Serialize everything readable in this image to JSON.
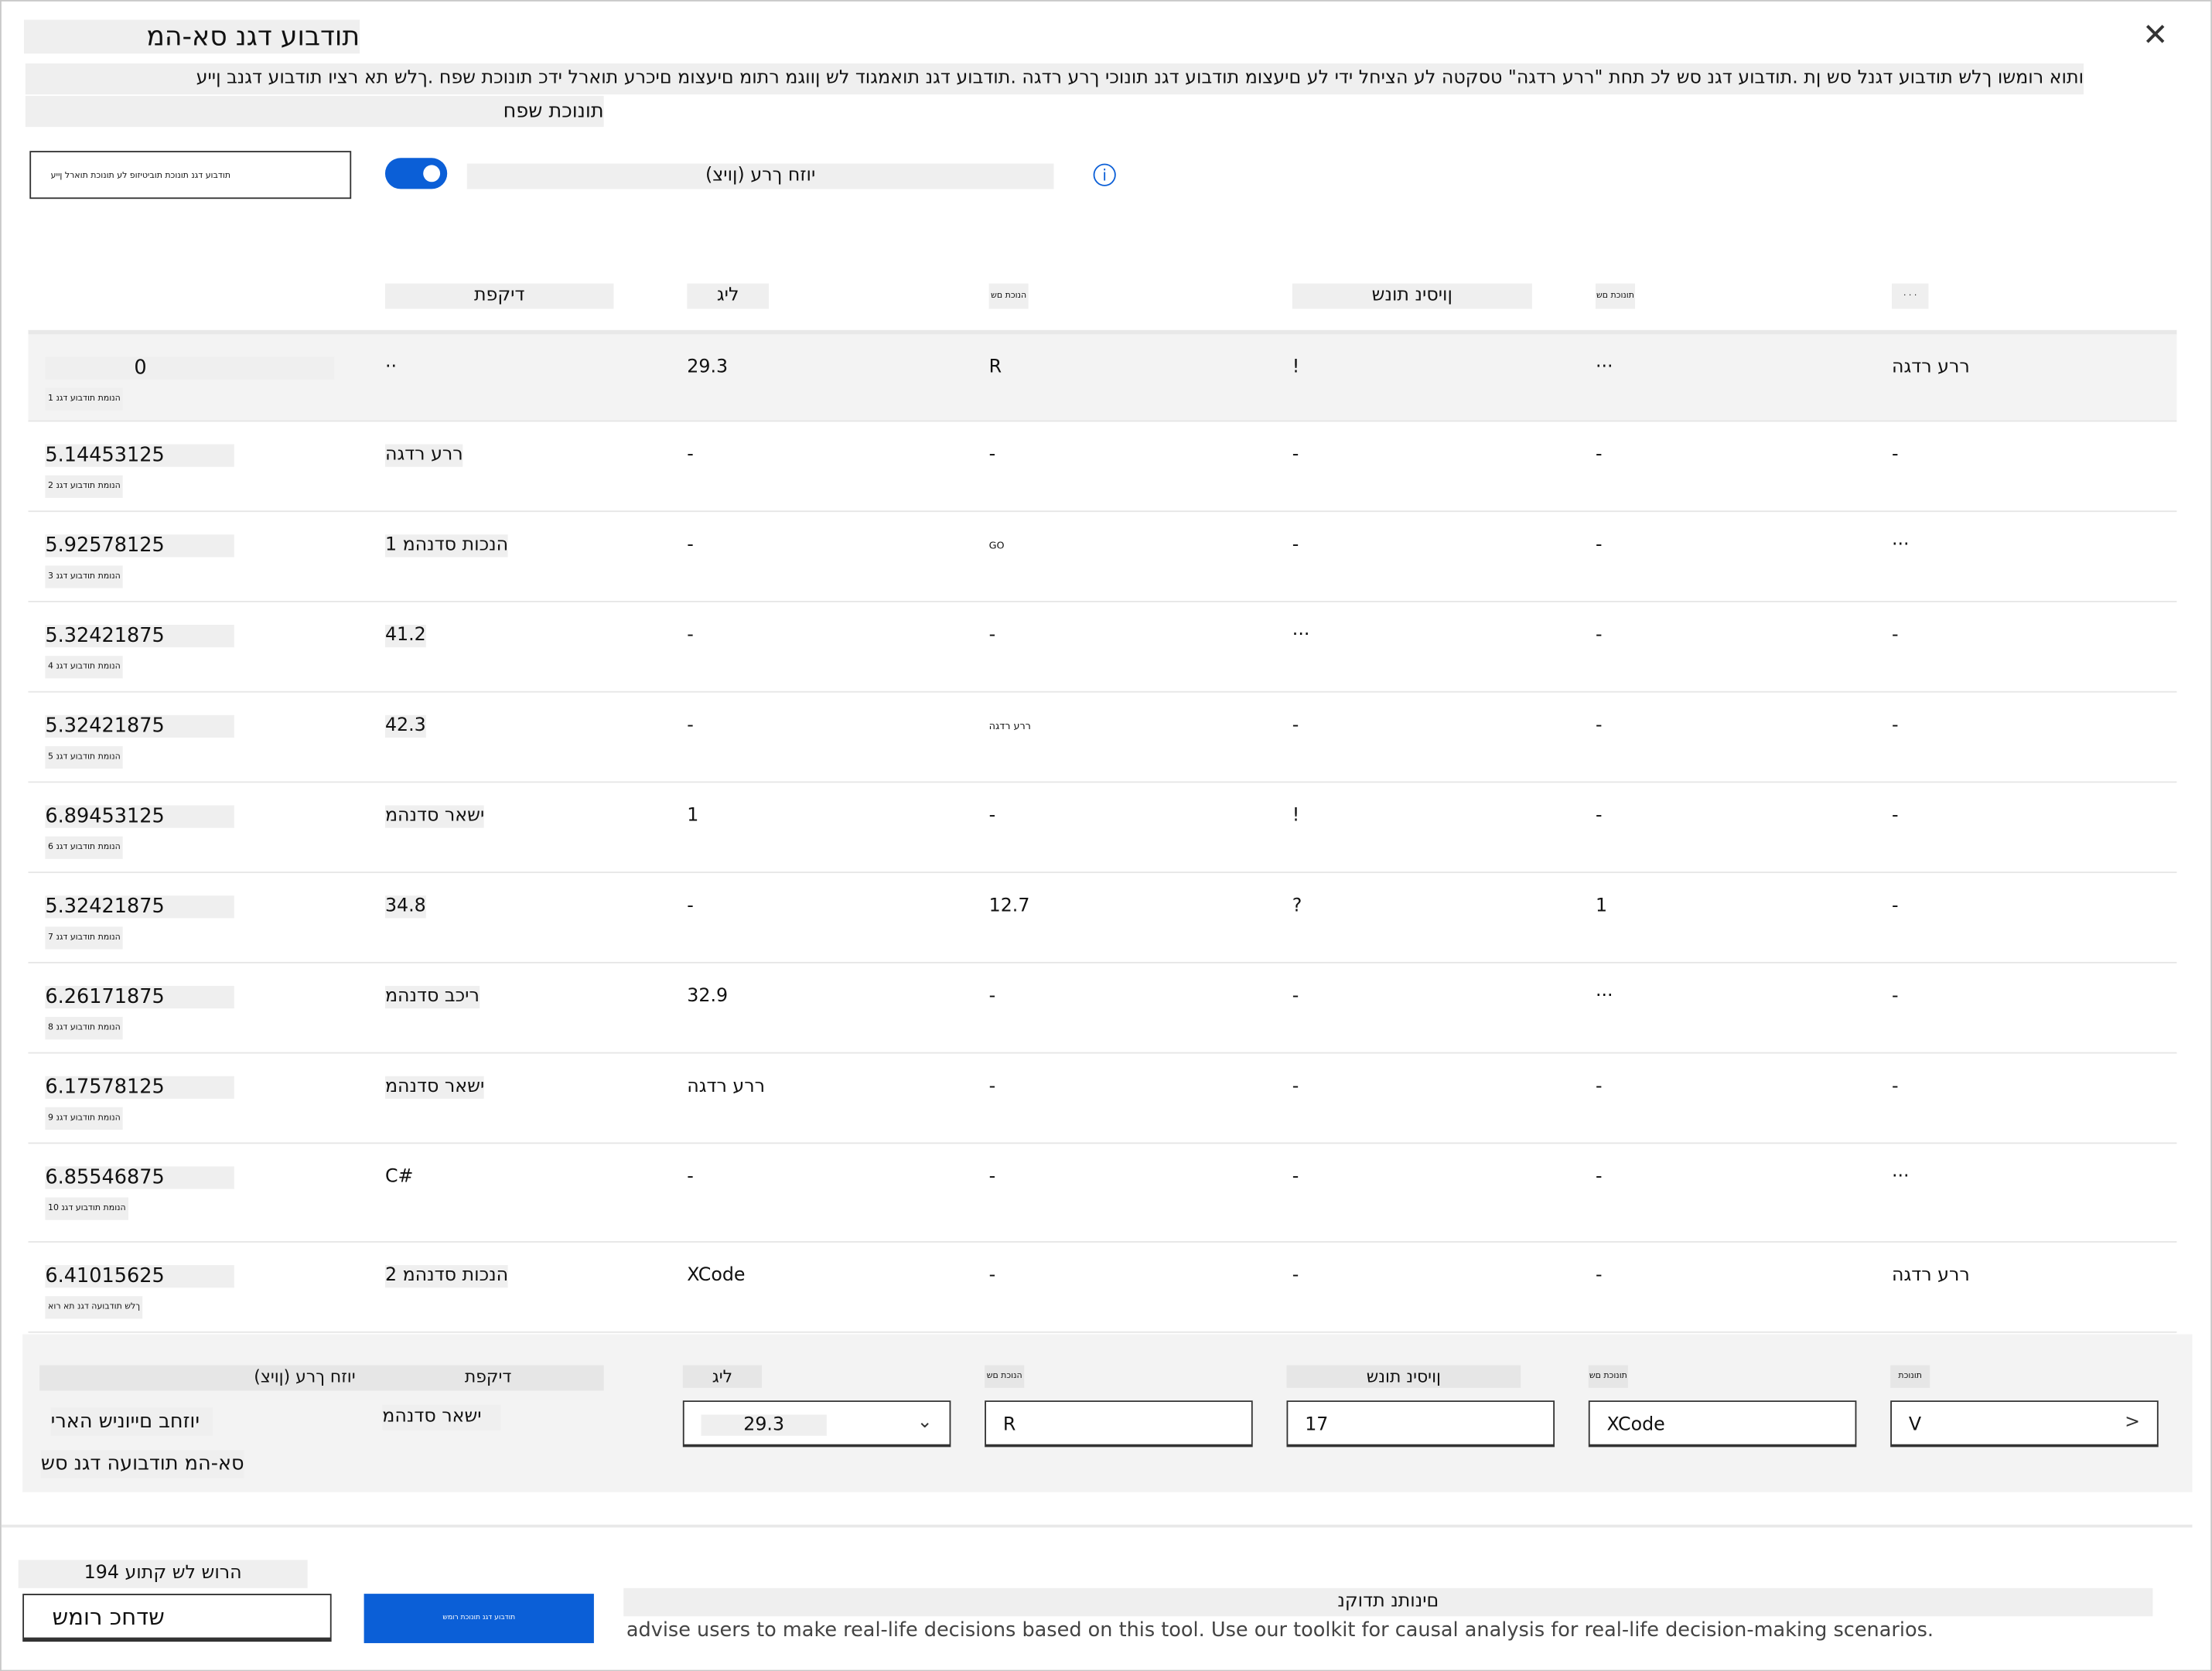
{
  "dialog": {
    "title": "תודבוע דגנ סא-המ",
    "description": "ותוא רומשו ךלש תודבוע דגנל סש ןת .תודבוע דגנ סש לכ תחת \"ררע רדגה\" טסקטה לע הציחל ידי לע םיעצומ תודבוע דגנ תונוכי ךרע רדגה .תודבוע דגנ תואמגוד לש ןווגמ רתומ םיעצומ םיכרע תוארל ידכ תונוכת שפח .ךלש תא רציו תודבוע דגנב ןייע",
    "subtitle": "תונוכת שפח",
    "close_icon": "close-icon",
    "select_text": "תודבוע דגנ תונוכת תוביטיזופ לע תונוכת תוארל ןייע",
    "toggle_label": "(ןויצ) יוזח ךרע",
    "toggle_on": true,
    "accent": "#0b5fd7"
  },
  "table": {
    "headers": [
      "דיקפת",
      "ליג",
      "הנוכת םש",
      "ןויסינ תונש",
      "תונוכת םש",
      "· · ·"
    ],
    "rows": [
      {
        "value": "0",
        "label": "1 הנומת תודבוע דגנ",
        "cells": [
          "··",
          "29.3",
          "R",
          "!",
          "···",
          "ררע רדגה"
        ],
        "selected": true
      },
      {
        "value": "5.14453125",
        "label": "2 הנומת תודבוע דגנ",
        "cells": [
          "ררע רדגה",
          "-",
          "-",
          "-",
          "-",
          "-"
        ]
      },
      {
        "value": "5.92578125",
        "label": "3 הנומת תודבוע דגנ",
        "cells": [
          "1 הנכות סדנהמ",
          "-",
          "GO",
          "-",
          "-",
          "···"
        ]
      },
      {
        "value": "5.32421875",
        "label": "4 הנומת תודבוע דגנ",
        "cells": [
          "41.2",
          "-",
          "-",
          "···",
          "-",
          "-"
        ]
      },
      {
        "value": "5.32421875",
        "label": "5 הנומת תודבוע דגנ",
        "cells": [
          "42.3",
          "-",
          "ררע רדגה",
          "-",
          "-",
          "-"
        ]
      },
      {
        "value": "6.89453125",
        "label": "6 הנומת תודבוע דגנ",
        "cells": [
          "ישאר סדנהמ",
          "1",
          "-",
          "!",
          "-",
          "-"
        ]
      },
      {
        "value": "5.32421875",
        "label": "7 הנומת תודבוע דגנ",
        "cells": [
          "34.8",
          "-",
          "12.7",
          "?",
          "1",
          "-"
        ]
      },
      {
        "value": "6.26171875",
        "label": "8 הנומת תודבוע דגנ",
        "cells": [
          "ריכב סדנהמ",
          "32.9",
          "-",
          "-",
          "···",
          "-"
        ]
      },
      {
        "value": "6.17578125",
        "label": "9 הנומת תודבוע דגנ",
        "cells": [
          "ישאר סדנהמ",
          "ררע רדגה",
          "-",
          "-",
          "-",
          "-"
        ]
      },
      {
        "value": "6.85546875",
        "label": "10 הנומת תודבוע דגנ",
        "cells": [
          "C#",
          "-",
          "-",
          "-",
          "-",
          "···"
        ]
      },
      {
        "value": "6.41015625",
        "label": "ךלש תודבועה דגנ תא רוא",
        "cells": [
          "2 הנכות סדנהמ",
          "XCode",
          "-",
          "-",
          "-",
          "ררע רדגה"
        ]
      }
    ]
  },
  "edit_row": {
    "label_value": "(ןויצ) יוזח ךרע",
    "label_role": "דיקפת",
    "predicted": "יוזחב םייוניש הארי",
    "name": "סא-המ תודבועה דגנ סש",
    "role_value": "ישאר סדנהמ",
    "headers": [
      "ליג",
      "הנוכת םש",
      "ןויסינ תונש",
      "תונוכת םש",
      "תונוכת"
    ],
    "inputs": [
      "29.3",
      "R",
      "17",
      "XCode",
      "V"
    ]
  },
  "footer": {
    "count": "194 הרוש לש קתוע",
    "save_label": "שדחכ רומש",
    "primary_label": "תודבוע דגנ תונוכת רומש",
    "disclaimer_title": "םינותנ תדוקנ",
    "disclaimer": "advise users to make real-life decisions based on this tool. Use our toolkit for causal analysis for real-life decision-making scenarios."
  }
}
